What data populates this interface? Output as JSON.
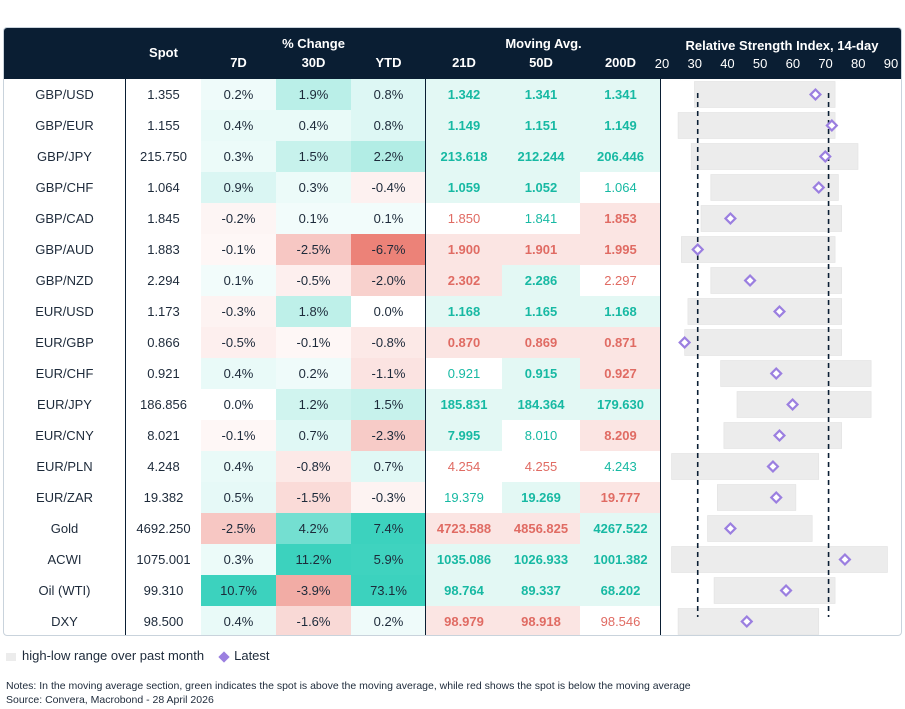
{
  "chart_data": {
    "type": "table",
    "headers": {
      "spot": "Spot",
      "change_group": "% Change",
      "change_cols": [
        "7D",
        "30D",
        "YTD"
      ],
      "ma_group": "Moving Avg.",
      "ma_cols": [
        "21D",
        "50D",
        "200D"
      ],
      "rsi_title": "Relative Strength Index, 14-day",
      "rsi_ticks": [
        "20",
        "30",
        "40",
        "50",
        "60",
        "70",
        "80",
        "90"
      ]
    },
    "rsi_axis": {
      "min": 20,
      "max": 90,
      "thresholds": [
        30,
        70
      ]
    },
    "rows": [
      {
        "name": "GBP/USD",
        "spot": "1.355",
        "d7": "0.2%",
        "d30": "1.9%",
        "ytd": "0.8%",
        "ma21": "1.342",
        "ma50": "1.341",
        "ma200": "1.341",
        "rsi_low": 29,
        "rsi_high": 72,
        "rsi": 66
      },
      {
        "name": "GBP/EUR",
        "spot": "1.155",
        "d7": "0.4%",
        "d30": "0.4%",
        "ytd": "0.8%",
        "ma21": "1.149",
        "ma50": "1.151",
        "ma200": "1.149",
        "rsi_low": 24,
        "rsi_high": 72,
        "rsi": 71
      },
      {
        "name": "GBP/JPY",
        "spot": "215.750",
        "d7": "0.3%",
        "d30": "1.5%",
        "ytd": "2.2%",
        "ma21": "213.618",
        "ma50": "212.244",
        "ma200": "206.446",
        "rsi_low": 28,
        "rsi_high": 79,
        "rsi": 69
      },
      {
        "name": "GBP/CHF",
        "spot": "1.064",
        "d7": "0.9%",
        "d30": "0.3%",
        "ytd": "-0.4%",
        "ma21": "1.059",
        "ma50": "1.052",
        "ma200": "1.064",
        "rsi_low": 34,
        "rsi_high": 73,
        "rsi": 67
      },
      {
        "name": "GBP/CAD",
        "spot": "1.845",
        "d7": "-0.2%",
        "d30": "0.1%",
        "ytd": "0.1%",
        "ma21": "1.850",
        "ma50": "1.841",
        "ma200": "1.853",
        "rsi_low": 31,
        "rsi_high": 74,
        "rsi": 40
      },
      {
        "name": "GBP/AUD",
        "spot": "1.883",
        "d7": "-0.1%",
        "d30": "-2.5%",
        "ytd": "-6.7%",
        "ma21": "1.900",
        "ma50": "1.901",
        "ma200": "1.995",
        "rsi_low": 25,
        "rsi_high": 72,
        "rsi": 30
      },
      {
        "name": "GBP/NZD",
        "spot": "2.294",
        "d7": "0.1%",
        "d30": "-0.5%",
        "ytd": "-2.0%",
        "ma21": "2.302",
        "ma50": "2.286",
        "ma200": "2.297",
        "rsi_low": 34,
        "rsi_high": 74,
        "rsi": 46
      },
      {
        "name": "EUR/USD",
        "spot": "1.173",
        "d7": "-0.3%",
        "d30": "1.8%",
        "ytd": "0.0%",
        "ma21": "1.168",
        "ma50": "1.165",
        "ma200": "1.168",
        "rsi_low": 27,
        "rsi_high": 74,
        "rsi": 55
      },
      {
        "name": "EUR/GBP",
        "spot": "0.866",
        "d7": "-0.5%",
        "d30": "-0.1%",
        "ytd": "-0.8%",
        "ma21": "0.870",
        "ma50": "0.869",
        "ma200": "0.871",
        "rsi_low": 26,
        "rsi_high": 74,
        "rsi": 26
      },
      {
        "name": "EUR/CHF",
        "spot": "0.921",
        "d7": "0.4%",
        "d30": "0.2%",
        "ytd": "-1.1%",
        "ma21": "0.921",
        "ma50": "0.915",
        "ma200": "0.927",
        "rsi_low": 37,
        "rsi_high": 83,
        "rsi": 54
      },
      {
        "name": "EUR/JPY",
        "spot": "186.856",
        "d7": "0.0%",
        "d30": "1.2%",
        "ytd": "1.5%",
        "ma21": "185.831",
        "ma50": "184.364",
        "ma200": "179.630",
        "rsi_low": 42,
        "rsi_high": 83,
        "rsi": 59
      },
      {
        "name": "EUR/CNY",
        "spot": "8.021",
        "d7": "-0.1%",
        "d30": "0.7%",
        "ytd": "-2.3%",
        "ma21": "7.995",
        "ma50": "8.010",
        "ma200": "8.209",
        "rsi_low": 38,
        "rsi_high": 74,
        "rsi": 55
      },
      {
        "name": "EUR/PLN",
        "spot": "4.248",
        "d7": "0.4%",
        "d30": "-0.8%",
        "ytd": "0.7%",
        "ma21": "4.254",
        "ma50": "4.255",
        "ma200": "4.243",
        "rsi_low": 22,
        "rsi_high": 67,
        "rsi": 53
      },
      {
        "name": "EUR/ZAR",
        "spot": "19.382",
        "d7": "0.5%",
        "d30": "-1.5%",
        "ytd": "-0.3%",
        "ma21": "19.379",
        "ma50": "19.269",
        "ma200": "19.777",
        "rsi_low": 36,
        "rsi_high": 60,
        "rsi": 54
      },
      {
        "name": "Gold",
        "spot": "4692.250",
        "d7": "-2.5%",
        "d30": "4.2%",
        "ytd": "7.4%",
        "ma21": "4723.588",
        "ma50": "4856.825",
        "ma200": "4267.522",
        "rsi_low": 33,
        "rsi_high": 65,
        "rsi": 40
      },
      {
        "name": "ACWI",
        "spot": "1075.001",
        "d7": "0.3%",
        "d30": "11.2%",
        "ytd": "5.9%",
        "ma21": "1035.086",
        "ma50": "1026.933",
        "ma200": "1001.382",
        "rsi_low": 22,
        "rsi_high": 88,
        "rsi": 75
      },
      {
        "name": "Oil (WTI)",
        "spot": "99.310",
        "d7": "10.7%",
        "d30": "-3.9%",
        "ytd": "73.1%",
        "ma21": "98.764",
        "ma50": "89.337",
        "ma200": "68.202",
        "rsi_low": 35,
        "rsi_high": 72,
        "rsi": 57
      },
      {
        "name": "DXY",
        "spot": "98.500",
        "d7": "0.4%",
        "d30": "-1.6%",
        "ytd": "0.2%",
        "ma21": "98.979",
        "ma50": "98.918",
        "ma200": "98.546",
        "rsi_low": 24,
        "rsi_high": 67,
        "rsi": 45
      }
    ]
  },
  "colors": {
    "header_bg": "#0a1e33",
    "positive_text": "#17b9a3",
    "negative_text": "#e06b63",
    "range_bar": "#ececec",
    "diamond": "#9b7fe0"
  },
  "legend": {
    "range": "high-low range over past month",
    "latest": "Latest"
  },
  "notes": {
    "line1": "Notes: In the moving average section, green indicates the spot is above the moving average, while red shows the spot is below the moving average",
    "line2": "Source: Convera, Macrobond - 28 April 2026"
  }
}
